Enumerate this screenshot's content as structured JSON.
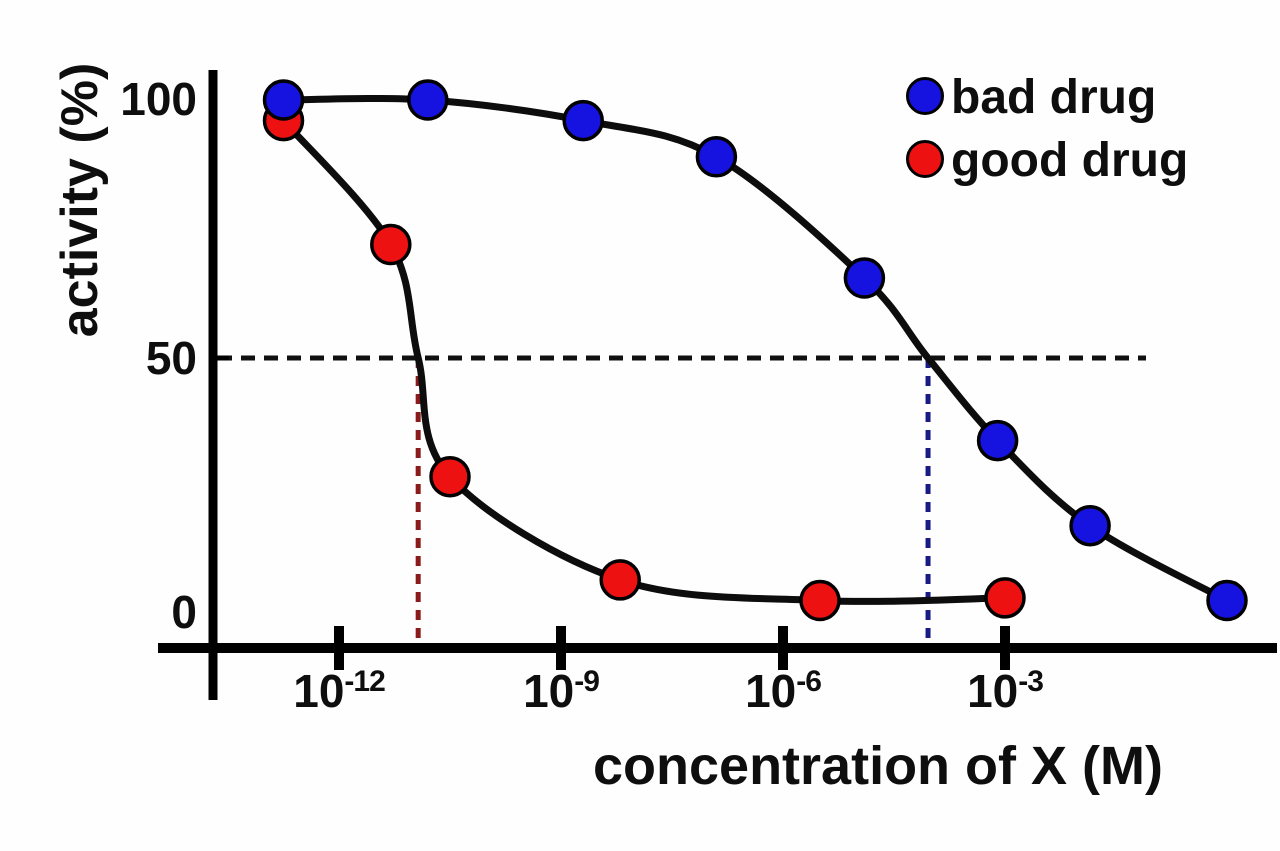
{
  "figure": {
    "background": "#fefefe",
    "text_color": "#0e0e0e"
  },
  "chart_data": {
    "type": "scatter",
    "title": "",
    "xlabel": "concentration of X (M)",
    "ylabel": "activity (%)",
    "x_scale": "log10",
    "x_range_log10": [
      -13.1,
      0.7
    ],
    "y_range": [
      0,
      100
    ],
    "grid": false,
    "legend_position": "top-right",
    "x_ticks": [
      {
        "base": "10",
        "exp": "-12",
        "log10": -12
      },
      {
        "base": "10",
        "exp": "-9",
        "log10": -9
      },
      {
        "base": "10",
        "exp": "-6",
        "log10": -6
      },
      {
        "base": "10",
        "exp": "-3",
        "log10": -3
      }
    ],
    "y_ticks": [
      {
        "label": "100",
        "value": 100
      },
      {
        "label": "50",
        "value": 50
      },
      {
        "label": "0",
        "value": 0
      }
    ],
    "series": [
      {
        "name": "good drug",
        "marker_color": "#ee1111",
        "line_color": "#0d0d0d",
        "points": [
          {
            "log10_conc": -12.75,
            "activity": 96
          },
          {
            "log10_conc": -11.3,
            "activity": 72
          },
          {
            "log10_conc": -10.5,
            "activity": 27
          },
          {
            "log10_conc": -8.2,
            "activity": 7
          },
          {
            "log10_conc": -5.5,
            "activity": 3
          },
          {
            "log10_conc": -3.0,
            "activity": 3.5
          }
        ],
        "curve_extra_points": [
          {
            "log10_conc": -10.93,
            "activity": 50
          }
        ],
        "ic50_log10": -10.93
      },
      {
        "name": "bad drug",
        "marker_color": "#1612e0",
        "line_color": "#0d0d0d",
        "points": [
          {
            "log10_conc": -12.75,
            "activity": 100
          },
          {
            "log10_conc": -10.8,
            "activity": 100
          },
          {
            "log10_conc": -8.7,
            "activity": 96
          },
          {
            "log10_conc": -6.9,
            "activity": 89
          },
          {
            "log10_conc": -4.9,
            "activity": 65.5
          },
          {
            "log10_conc": -3.1,
            "activity": 34
          },
          {
            "log10_conc": -1.85,
            "activity": 17.5
          },
          {
            "log10_conc": 0.0,
            "activity": 3
          }
        ],
        "curve_extra_points": [
          {
            "log10_conc": -4.04,
            "activity": 50
          }
        ],
        "ic50_log10": -4.04
      }
    ],
    "annotations": {
      "half_activity_line": {
        "activity": 50,
        "color": "#101010",
        "style": "dashed"
      },
      "ic50_line_good_drug": {
        "log10_conc": -10.93,
        "color": "#8b1a1a",
        "style": "dashed"
      },
      "ic50_line_bad_drug": {
        "log10_conc": -4.04,
        "color": "#1a1a85",
        "style": "dashed"
      }
    },
    "legend": {
      "items": [
        {
          "label": "bad drug",
          "color": "#1612e0"
        },
        {
          "label": "good drug",
          "color": "#ee1111"
        }
      ]
    }
  }
}
